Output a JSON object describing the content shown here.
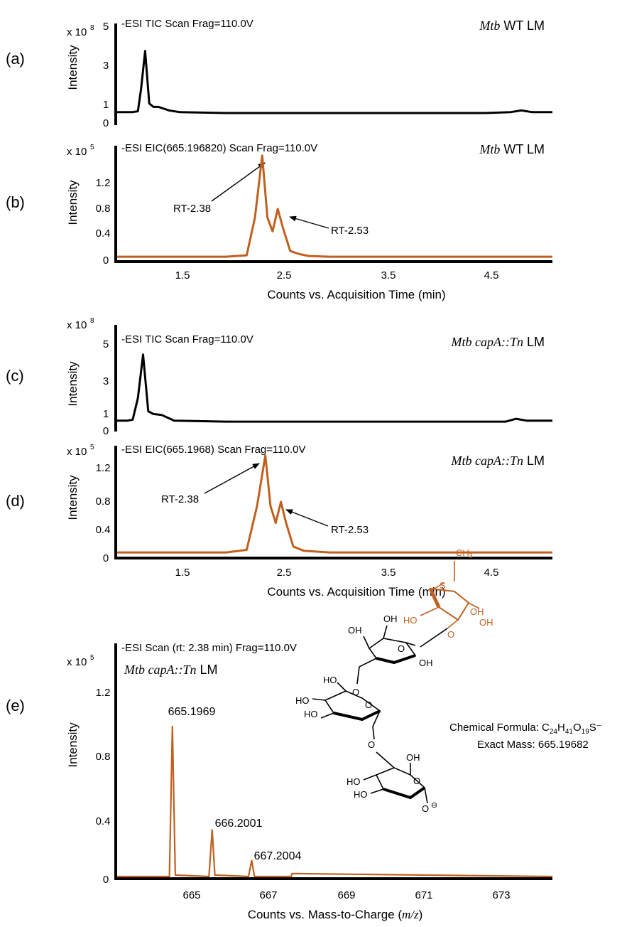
{
  "colors": {
    "tic": "#000000",
    "eic": "#c0601f",
    "text": "#000000"
  },
  "panels": [
    {
      "letter": "(a)",
      "exp_base": "x 10",
      "exp_power": "8",
      "ylabel": "Intensity",
      "title": "-ESI TIC Scan Frag=110.0V",
      "sample_a": "Mtb",
      "sample_b": " WT LM",
      "yticks": [
        "0",
        "1",
        "3",
        "5"
      ]
    },
    {
      "letter": "(b)",
      "exp_base": "x 10",
      "exp_power": "5",
      "ylabel": "Intensity",
      "title": "-ESI EIC(665.196820) Scan Frag=110.0V",
      "sample_a": "Mtb",
      "sample_b": " WT LM",
      "yticks": [
        "0",
        "0.4",
        "0.8",
        "1.2"
      ],
      "ann1": "RT-2.38",
      "ann2": "RT-2.53",
      "xticks": [
        "1.5",
        "2.5",
        "3.5",
        "4.5"
      ],
      "xlabel": "Counts vs. Acquisition Time (min)"
    },
    {
      "letter": "(c)",
      "exp_base": "x 10",
      "exp_power": "8",
      "ylabel": "Intensity",
      "title": "-ESI TIC Scan Frag=110.0V",
      "sample_a": "Mtb capA::Tn",
      "sample_b": " LM",
      "yticks": [
        "0",
        "1",
        "3",
        "5"
      ]
    },
    {
      "letter": "(d)",
      "exp_base": "x 10",
      "exp_power": "5",
      "ylabel": "Intensity",
      "title": "-ESI EIC(665.1968) Scan Frag=110.0V",
      "sample_a": "Mtb capA::Tn",
      "sample_b": " LM",
      "yticks": [
        "0",
        "0.4",
        "0.8",
        "1.2"
      ],
      "ann1": "RT-2.38",
      "ann2": "RT-2.53",
      "xticks": [
        "1.5",
        "2.5",
        "3.5",
        "4.5"
      ],
      "xlabel": "Counts vs. Acquisition Time (min)"
    },
    {
      "letter": "(e)",
      "exp_base": "x 10",
      "exp_power": "5",
      "ylabel": "Intensity",
      "title": "-ESI Scan (rt: 2.38 min) Frag=110.0V",
      "sample_a": "Mtb capA::Tn",
      "sample_b": " LM",
      "yticks": [
        "0",
        "0.4",
        "0.8",
        "1.2"
      ],
      "xticks": [
        "665",
        "667",
        "669",
        "671",
        "673"
      ],
      "xlabel_a": "Counts vs. Mass-to-Charge (",
      "xlabel_b": "m/z",
      "xlabel_c": ")",
      "peak_labels": [
        "665.1969",
        "666.2001",
        "667.2004"
      ]
    }
  ],
  "structure": {
    "formula_label": "Chemical Formula: C",
    "formula_sub": [
      "24",
      "41",
      "19"
    ],
    "formula_h": "H",
    "formula_o": "O",
    "formula_s": "S",
    "formula_charge": "⁻",
    "exact_mass": "Exact Mass: 665.19682",
    "groups": [
      "CH",
      "3",
      "S",
      "OH",
      "HO",
      "O",
      "OH",
      "O",
      "OH",
      "HO",
      "O",
      "HO",
      "HO",
      "O",
      "O",
      "HO",
      "HO",
      "O",
      "O",
      "⊖"
    ]
  },
  "chart_data": [
    {
      "type": "line",
      "title": "-ESI TIC Scan Frag=110.0V",
      "ylabel": "Intensity",
      "ylim": [
        0,
        5.5
      ],
      "xlim": [
        0.95,
        5.15
      ],
      "y_multiplier": "x 10^8",
      "series": [
        {
          "x": [
            0.95,
            1.1,
            1.15,
            1.18,
            1.22,
            1.26,
            1.3,
            1.35,
            1.45,
            1.55,
            2.0,
            3.0,
            4.5,
            4.75,
            4.85,
            4.95,
            5.15
          ],
          "y": [
            0.5,
            0.5,
            0.55,
            1.8,
            4.0,
            1.0,
            0.8,
            0.8,
            0.6,
            0.5,
            0.45,
            0.45,
            0.45,
            0.5,
            0.6,
            0.5,
            0.5
          ]
        }
      ]
    },
    {
      "type": "line",
      "title": "-ESI EIC(665.196820) Scan Frag=110.0V",
      "ylabel": "Intensity",
      "xlabel": "Counts vs. Acquisition Time (min)",
      "ylim": [
        0,
        1.6
      ],
      "xlim": [
        0.95,
        5.15
      ],
      "y_multiplier": "x 10^5",
      "series": [
        {
          "x": [
            0.95,
            2.0,
            2.2,
            2.28,
            2.35,
            2.4,
            2.45,
            2.5,
            2.55,
            2.62,
            2.7,
            2.8,
            3.0,
            5.15
          ],
          "y": [
            0.04,
            0.04,
            0.06,
            0.6,
            1.48,
            0.6,
            0.4,
            0.72,
            0.45,
            0.12,
            0.08,
            0.05,
            0.04,
            0.04
          ]
        }
      ]
    },
    {
      "type": "line",
      "title": "-ESI TIC Scan Frag=110.0V",
      "ylabel": "Intensity",
      "ylim": [
        0,
        5.5
      ],
      "xlim": [
        0.95,
        5.15
      ],
      "y_multiplier": "x 10^8",
      "series": [
        {
          "x": [
            0.95,
            1.05,
            1.1,
            1.15,
            1.2,
            1.25,
            1.3,
            1.38,
            1.5,
            2.0,
            3.0,
            4.7,
            4.8,
            4.9,
            5.15
          ],
          "y": [
            0.5,
            0.5,
            0.55,
            1.7,
            4.0,
            1.0,
            0.85,
            0.8,
            0.5,
            0.45,
            0.45,
            0.45,
            0.6,
            0.5,
            0.5
          ]
        }
      ]
    },
    {
      "type": "line",
      "title": "-ESI EIC(665.1968) Scan Frag=110.0V",
      "ylabel": "Intensity",
      "xlabel": "Counts vs. Acquisition Time (min)",
      "ylim": [
        0,
        1.3
      ],
      "xlim": [
        0.95,
        5.15
      ],
      "y_multiplier": "x 10^5",
      "series": [
        {
          "x": [
            0.95,
            2.0,
            2.2,
            2.3,
            2.38,
            2.43,
            2.48,
            2.53,
            2.58,
            2.65,
            2.75,
            3.0,
            5.15
          ],
          "y": [
            0.05,
            0.05,
            0.08,
            0.6,
            1.2,
            0.6,
            0.4,
            0.65,
            0.4,
            0.12,
            0.07,
            0.05,
            0.05
          ]
        }
      ]
    },
    {
      "type": "line",
      "title": "-ESI Scan (rt: 2.38 min) Frag=110.0V",
      "ylabel": "Intensity",
      "xlabel": "Counts vs. Mass-to-Charge (m/z)",
      "ylim": [
        0,
        1.6
      ],
      "xlim": [
        663.8,
        674.8
      ],
      "y_multiplier": "x 10^5",
      "series": [
        {
          "x": [
            663.8,
            665.12,
            665.1969,
            665.27,
            666.12,
            666.2001,
            666.27,
            667.12,
            667.2004,
            667.27,
            668.2,
            668.22,
            674.8
          ],
          "y": [
            0.01,
            0.01,
            1.04,
            0.02,
            0.01,
            0.33,
            0.02,
            0.01,
            0.12,
            0.01,
            0.01,
            0.03,
            0.01
          ]
        }
      ]
    }
  ]
}
